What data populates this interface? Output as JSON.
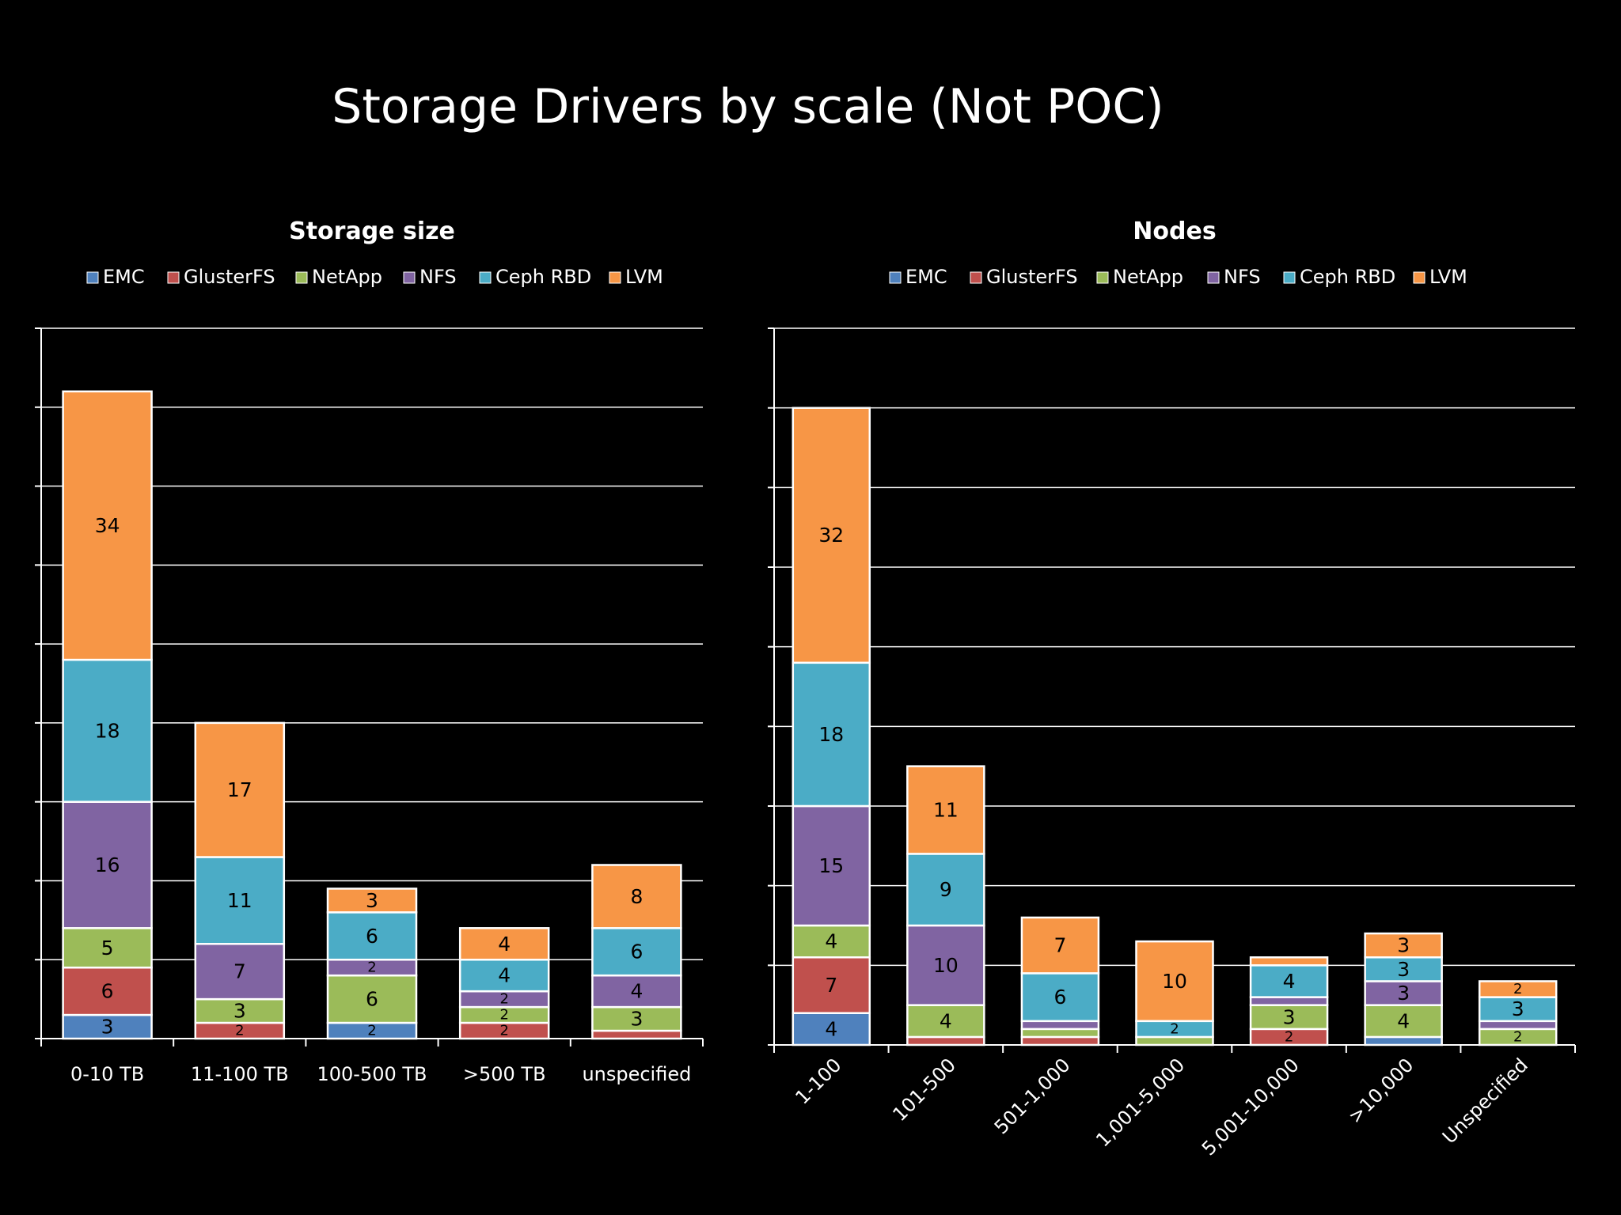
{
  "slide": {
    "title": "Storage Drivers by scale (Not POC)"
  },
  "chart_data": [
    {
      "type": "bar",
      "stacked": true,
      "title": "Storage size",
      "xlabel": "",
      "ylabel": "",
      "legend_position": "top",
      "grid": true,
      "ylim": [
        0,
        90
      ],
      "categories": [
        "0-10 TB",
        "11-100 TB",
        "100-500 TB",
        ">500 TB",
        "unspecified"
      ],
      "series": [
        {
          "name": "EMC",
          "color": "#4f81bd",
          "values": [
            3,
            0,
            2,
            0,
            0
          ]
        },
        {
          "name": "GlusterFS",
          "color": "#c0504d",
          "values": [
            6,
            2,
            0,
            2,
            1
          ]
        },
        {
          "name": "NetApp",
          "color": "#9bbb59",
          "values": [
            5,
            3,
            6,
            2,
            3
          ]
        },
        {
          "name": "NFS",
          "color": "#8064a2",
          "values": [
            16,
            7,
            2,
            2,
            4
          ]
        },
        {
          "name": "Ceph RBD",
          "color": "#4bacc6",
          "values": [
            18,
            11,
            6,
            4,
            6
          ]
        },
        {
          "name": "LVM",
          "color": "#f79646",
          "values": [
            34,
            17,
            3,
            4,
            8
          ]
        }
      ],
      "data_labels": [
        [
          "3",
          "",
          "2",
          "",
          ""
        ],
        [
          "6",
          "2",
          "",
          "2",
          ""
        ],
        [
          "5",
          "3",
          "6",
          "2",
          "3"
        ],
        [
          "16",
          "7",
          "2",
          "2",
          "4"
        ],
        [
          "18",
          "11",
          "6",
          "4",
          "6"
        ],
        [
          "34",
          "17",
          "3",
          "4",
          "8"
        ]
      ]
    },
    {
      "type": "bar",
      "stacked": true,
      "title": "Nodes",
      "xlabel": "",
      "ylabel": "",
      "legend_position": "top",
      "grid": true,
      "ylim": [
        0,
        90
      ],
      "categories": [
        "1-100",
        "101-500",
        "501-1,000",
        "1,001-5,000",
        "5,001-10,000",
        ">10,000",
        "Unspecified"
      ],
      "series": [
        {
          "name": "EMC",
          "color": "#4f81bd",
          "values": [
            4,
            0,
            0,
            0,
            0,
            1,
            0
          ]
        },
        {
          "name": "GlusterFS",
          "color": "#c0504d",
          "values": [
            7,
            1,
            1,
            0,
            2,
            0,
            0
          ]
        },
        {
          "name": "NetApp",
          "color": "#9bbb59",
          "values": [
            4,
            4,
            1,
            1,
            3,
            4,
            2
          ]
        },
        {
          "name": "NFS",
          "color": "#8064a2",
          "values": [
            15,
            10,
            1,
            0,
            1,
            3,
            1
          ]
        },
        {
          "name": "Ceph RBD",
          "color": "#4bacc6",
          "values": [
            18,
            9,
            6,
            2,
            4,
            3,
            3
          ]
        },
        {
          "name": "LVM",
          "color": "#f79646",
          "values": [
            32,
            11,
            7,
            10,
            1,
            3,
            2
          ]
        }
      ],
      "data_labels": [
        [
          "4",
          "",
          "",
          "",
          "",
          "",
          ""
        ],
        [
          "7",
          "",
          "",
          "",
          "2",
          "",
          ""
        ],
        [
          "4",
          "4",
          "",
          "",
          "3",
          "4",
          "2"
        ],
        [
          "15",
          "10",
          "",
          "",
          "",
          "3",
          ""
        ],
        [
          "18",
          "9",
          "6",
          "2",
          "4",
          "3",
          "3"
        ],
        [
          "32",
          "11",
          "7",
          "10",
          "",
          "3",
          "2"
        ]
      ]
    }
  ]
}
